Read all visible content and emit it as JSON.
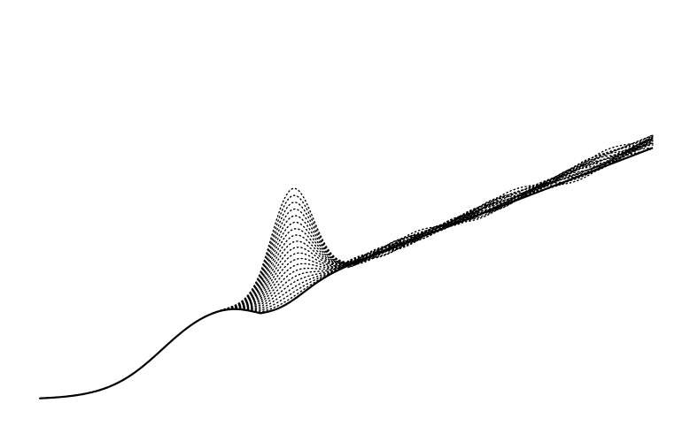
{
  "chart_data": {
    "type": "line",
    "title": "",
    "xlabel": "",
    "ylabel": "",
    "axes_visible": false,
    "grid": false,
    "legend": "none",
    "xlim": [
      0,
      1
    ],
    "ylim": [
      0,
      1
    ],
    "line_color": "#000000",
    "background": "#ffffff",
    "baseline_style": "solid",
    "family_style": "dotted",
    "family": {
      "count": 20,
      "description_free_params": {
        "x_start": 0.0,
        "x_end": 1.0,
        "ramp_center": 0.2,
        "ramp_width": 0.045,
        "ramp_height": 0.27,
        "slope": 0.62,
        "bump_center": 0.41,
        "bump_width": 0.05,
        "bump_height_min": 0.0,
        "bump_height_max": 0.3,
        "tail_phase_max": 0.012
      }
    }
  }
}
